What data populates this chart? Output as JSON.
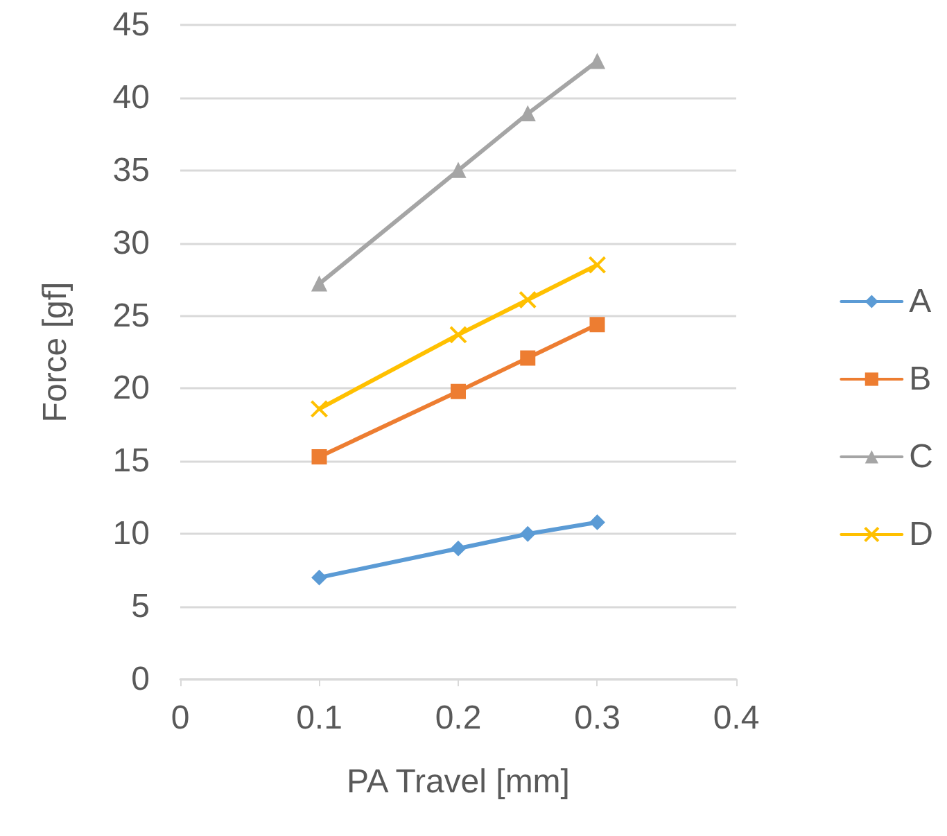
{
  "chart_data": {
    "type": "line",
    "xlabel": "PA Travel [mm]",
    "ylabel": "Force [gf]",
    "x": [
      0.1,
      0.2,
      0.25,
      0.3
    ],
    "series": [
      {
        "name": "A",
        "color": "#5b9bd5",
        "marker": "diamond",
        "values": [
          7.0,
          9.0,
          10.0,
          10.8
        ]
      },
      {
        "name": "B",
        "color": "#ed7d31",
        "marker": "square",
        "values": [
          15.3,
          19.8,
          22.1,
          24.4
        ]
      },
      {
        "name": "C",
        "color": "#a5a5a5",
        "marker": "triangle",
        "values": [
          27.2,
          35.0,
          38.9,
          42.5
        ]
      },
      {
        "name": "D",
        "color": "#ffc000",
        "marker": "cross",
        "values": [
          18.6,
          23.7,
          26.1,
          28.5
        ]
      }
    ],
    "xlim": [
      0,
      0.4
    ],
    "xticks": [
      0,
      0.1,
      0.2,
      0.3,
      0.4
    ],
    "ylim": [
      0,
      45
    ],
    "yticks": [
      0,
      5,
      10,
      15,
      20,
      25,
      30,
      35,
      40,
      45
    ],
    "grid": "y",
    "legend": "right",
    "line_style": "solid"
  }
}
